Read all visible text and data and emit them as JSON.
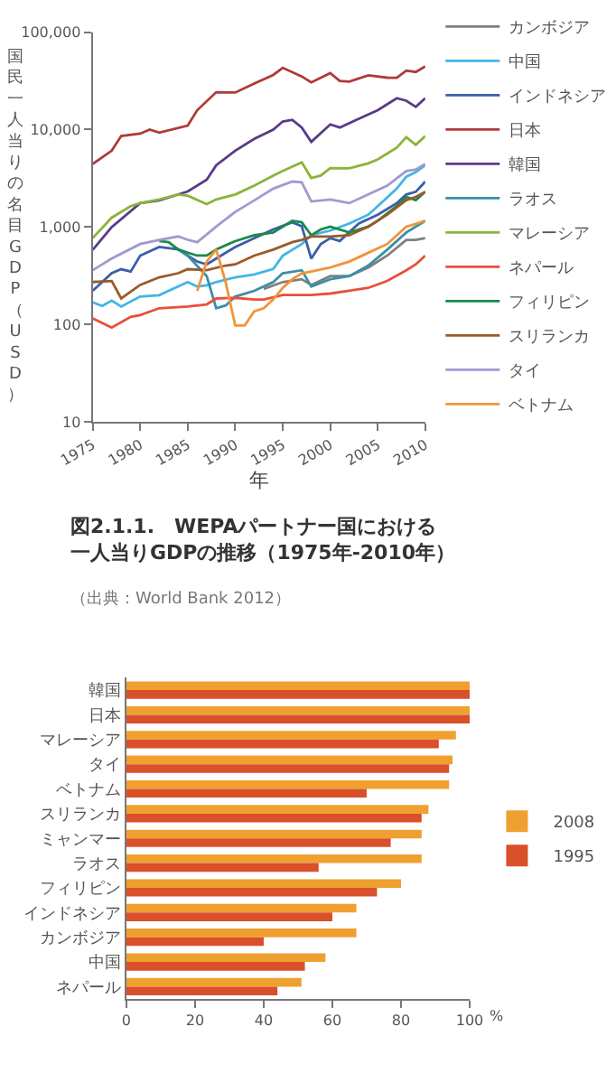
{
  "chart_data": [
    {
      "type": "line",
      "title": "図2.1.1.　WEPAパートナー国における一人当りGDPの推移（1975年-2010年）",
      "xlabel": "年",
      "ylabel": "国民一人当りの名目GDP（USD）",
      "annotations": [
        "（出典：World Bank 2012）"
      ],
      "log": true,
      "xlim": [
        1975,
        2010
      ],
      "xticks": [
        1975,
        1980,
        1985,
        1990,
        1995,
        2000,
        2005,
        2010
      ],
      "ylim": [
        10,
        100000
      ],
      "yticks": [
        10,
        100,
        {
          "value": 1000,
          "label": "1,000"
        },
        {
          "value": 10000,
          "label": "10,000"
        },
        {
          "value": 100000,
          "label": "100,000"
        }
      ],
      "grid": false,
      "legend": "top right",
      "marker": "none",
      "line_style": "solid",
      "series": [
        {
          "name": "カンボジア",
          "color": "#7f7f7f",
          "x": [
            1993,
            1995,
            1997,
            1998,
            2000,
            2002,
            2004,
            2006,
            2008,
            2009,
            2010
          ],
          "values": [
            232,
            273,
            292,
            255,
            314,
            314,
            385,
            510,
            738,
            738,
            770
          ]
        },
        {
          "name": "中国",
          "color": "#41b6e6",
          "x": [
            1975,
            1976,
            1977,
            1978,
            1980,
            1982,
            1985,
            1986,
            1987,
            1988,
            1990,
            1992,
            1994,
            1995,
            1997,
            1998,
            2000,
            2002,
            2004,
            2005,
            2007,
            2008,
            2009,
            2010
          ],
          "values": [
            169,
            155,
            176,
            153,
            194,
            200,
            273,
            245,
            253,
            273,
            305,
            327,
            371,
            509,
            670,
            824,
            921,
            1086,
            1340,
            1640,
            2480,
            3280,
            3660,
            4310
          ]
        },
        {
          "name": "インドネシア",
          "color": "#3a5fa8",
          "x": [
            1975,
            1977,
            1978,
            1979,
            1980,
            1982,
            1984,
            1985,
            1986,
            1987,
            1988,
            1990,
            1992,
            1994,
            1996,
            1997,
            1998,
            1999,
            2000,
            2001,
            2003,
            2005,
            2007,
            2008,
            2009,
            2010
          ],
          "values": [
            222,
            336,
            370,
            350,
            510,
            626,
            590,
            510,
            443,
            414,
            475,
            625,
            770,
            946,
            1120,
            1020,
            475,
            670,
            770,
            720,
            1090,
            1340,
            1760,
            2160,
            2300,
            2930
          ]
        },
        {
          "name": "日本",
          "color": "#b03a3a",
          "x": [
            1975,
            1977,
            1978,
            1980,
            1981,
            1982,
            1985,
            1986,
            1988,
            1990,
            1992,
            1994,
            1995,
            1997,
            1998,
            2000,
            2001,
            2002,
            2004,
            2006,
            2007,
            2008,
            2009,
            2010
          ],
          "values": [
            4440,
            6080,
            8590,
            9080,
            10000,
            9300,
            11000,
            15800,
            24200,
            24000,
            29700,
            36400,
            43100,
            35100,
            30500,
            38000,
            31600,
            31000,
            36000,
            34100,
            34000,
            40300,
            39000,
            44600
          ]
        },
        {
          "name": "韓国",
          "color": "#5a3a8a",
          "x": [
            1975,
            1977,
            1980,
            1982,
            1985,
            1987,
            1988,
            1990,
            1992,
            1994,
            1995,
            1996,
            1997,
            1998,
            2000,
            2001,
            2003,
            2005,
            2007,
            2008,
            2009,
            2010
          ],
          "values": [
            584,
            1000,
            1760,
            1880,
            2320,
            3060,
            4310,
            6080,
            8020,
            10000,
            12100,
            12600,
            10500,
            7480,
            11300,
            10500,
            12900,
            15800,
            21000,
            19800,
            17100,
            21000
          ]
        },
        {
          "name": "ラオス",
          "color": "#3a8fa8",
          "x": [
            1984,
            1985,
            1987,
            1988,
            1989,
            1990,
            1992,
            1994,
            1995,
            1997,
            1998,
            2000,
            2002,
            2004,
            2006,
            2008,
            2010
          ],
          "values": [
            590,
            510,
            314,
            147,
            157,
            194,
            222,
            273,
            336,
            361,
            245,
            292,
            314,
            403,
            587,
            880,
            1160
          ]
        },
        {
          "name": "マレーシア",
          "color": "#8db33a",
          "x": [
            1975,
            1977,
            1979,
            1980,
            1982,
            1984,
            1985,
            1987,
            1988,
            1990,
            1992,
            1994,
            1995,
            1997,
            1998,
            1999,
            2000,
            2002,
            2004,
            2005,
            2007,
            2008,
            2009,
            2010
          ],
          "values": [
            770,
            1250,
            1640,
            1760,
            1920,
            2160,
            2100,
            1720,
            1920,
            2160,
            2660,
            3370,
            3760,
            4620,
            3190,
            3370,
            4030,
            4000,
            4500,
            4950,
            6520,
            8350,
            6980,
            8590
          ]
        },
        {
          "name": "ネパール",
          "color": "#e8503a",
          "x": [
            1975,
            1977,
            1979,
            1980,
            1982,
            1985,
            1987,
            1988,
            1990,
            1992,
            1993,
            1995,
            1997,
            1998,
            2000,
            2002,
            2004,
            2006,
            2008,
            2009,
            2010
          ],
          "values": [
            116,
            93,
            120,
            125,
            147,
            153,
            161,
            185,
            188,
            181,
            181,
            201,
            201,
            201,
            208,
            222,
            238,
            280,
            361,
            414,
            510
          ]
        },
        {
          "name": "フィリピン",
          "color": "#1a8a4a",
          "x": [
            1982,
            1983,
            1984,
            1985,
            1986,
            1987,
            1988,
            1990,
            1992,
            1994,
            1996,
            1997,
            1998,
            1999,
            2000,
            2002,
            2004,
            2005,
            2007,
            2008,
            2009,
            2010
          ],
          "values": [
            718,
            700,
            590,
            546,
            510,
            510,
            590,
            718,
            824,
            880,
            1160,
            1120,
            824,
            946,
            1010,
            880,
            1010,
            1160,
            1640,
            2040,
            1890,
            2300
          ]
        },
        {
          "name": "スリランカ",
          "color": "#9a5a2a",
          "x": [
            1975,
            1977,
            1978,
            1980,
            1982,
            1984,
            1985,
            1987,
            1989,
            1990,
            1992,
            1994,
            1996,
            1997,
            1998,
            2000,
            2002,
            2004,
            2006,
            2008,
            2009,
            2010
          ],
          "values": [
            273,
            280,
            185,
            255,
            305,
            336,
            370,
            361,
            403,
            414,
            510,
            587,
            700,
            738,
            800,
            800,
            824,
            1010,
            1340,
            1890,
            2040,
            2300
          ]
        },
        {
          "name": "タイ",
          "color": "#a09ad0",
          "x": [
            1975,
            1977,
            1980,
            1982,
            1984,
            1985,
            1986,
            1988,
            1990,
            1992,
            1994,
            1996,
            1997,
            1998,
            2000,
            2002,
            2004,
            2006,
            2008,
            2009,
            2010
          ],
          "values": [
            361,
            475,
            670,
            738,
            802,
            740,
            700,
            1010,
            1430,
            1880,
            2480,
            2930,
            2880,
            1830,
            1920,
            1760,
            2160,
            2660,
            3760,
            3900,
            4440
          ]
        },
        {
          "name": "ベトナム",
          "color": "#f0943a",
          "x": [
            1986,
            1987,
            1988,
            1989,
            1990,
            1991,
            1992,
            1993,
            1994,
            1995,
            1996,
            1997,
            1998,
            2000,
            2002,
            2004,
            2006,
            2008,
            2009,
            2010
          ],
          "values": [
            222,
            443,
            590,
            270,
            98,
            98,
            137,
            147,
            181,
            238,
            292,
            336,
            350,
            385,
            443,
            545,
            670,
            1010,
            1080,
            1160
          ]
        }
      ]
    },
    {
      "type": "bar",
      "orientation": "horizontal",
      "xlabel": "%",
      "xlim": [
        0,
        100
      ],
      "xticks": [
        0,
        20,
        40,
        60,
        80,
        100
      ],
      "grid": false,
      "legend": "right",
      "categories": [
        "韓国",
        "日本",
        "マレーシア",
        "タイ",
        "ベトナム",
        "スリランカ",
        "ミャンマー",
        "ラオス",
        "フィリピン",
        "インドネシア",
        "カンボジア",
        "中国",
        "ネパール"
      ],
      "series": [
        {
          "name": "2008",
          "color": "#f0a030",
          "values": [
            100,
            100,
            96,
            95,
            94,
            88,
            86,
            86,
            80,
            67,
            67,
            58,
            51
          ]
        },
        {
          "name": "1995",
          "color": "#d9502a",
          "values": [
            100,
            100,
            91,
            94,
            70,
            86,
            77,
            56,
            73,
            60,
            40,
            52,
            44
          ]
        }
      ]
    }
  ]
}
